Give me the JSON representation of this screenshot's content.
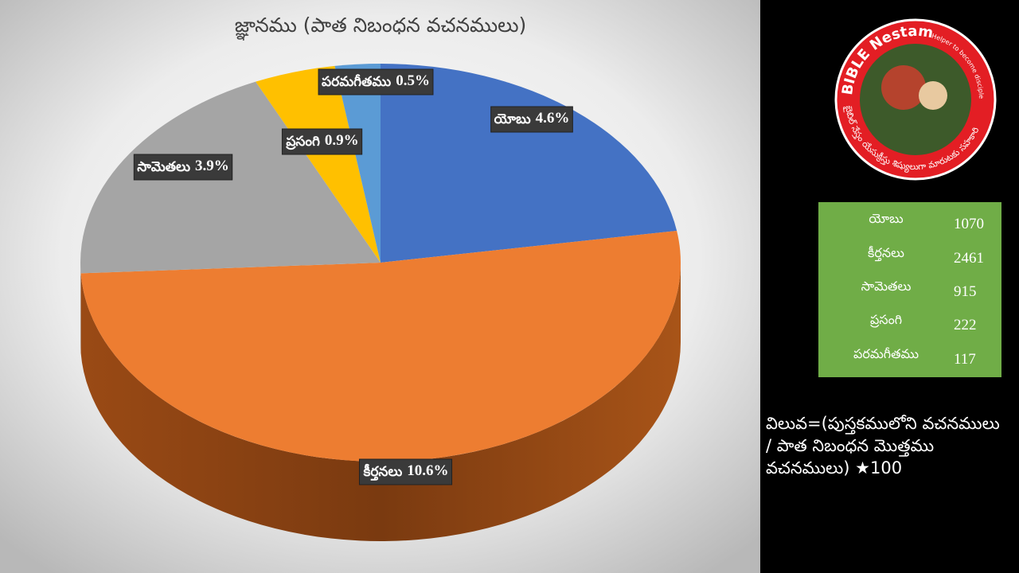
{
  "chart_data": {
    "type": "pie3d",
    "title": "జ్ఞానము (పాత నిబంధన వచనములు)",
    "categories": [
      "యోబు",
      "కీర్తనలు",
      "సామెతలు",
      "ప్రసంగి",
      "పరమగీతము"
    ],
    "values": [
      4.6,
      10.6,
      3.9,
      0.9,
      0.5
    ],
    "value_labels": [
      "4.6%",
      "10.6%",
      "3.9%",
      "0.9%",
      "0.5%"
    ],
    "colors": [
      "#4472c4",
      "#ed7d31",
      "#a5a5a5",
      "#ffc000",
      "#5b9bd5"
    ]
  },
  "table": {
    "rows": [
      [
        "యోబు",
        1070
      ],
      [
        "కీర్తనలు",
        2461
      ],
      [
        "సామెతలు",
        915
      ],
      [
        "ప్రసంగి",
        222
      ],
      [
        "పరమగీతము",
        117
      ]
    ]
  },
  "note": {
    "lines": [
      "విలువ=(పుస్తకములోని వచనములు",
      "/ పాత నిబంధన మొత్తము",
      "వచనములు) ★100"
    ]
  },
  "logo": {
    "name": "BIBLE Nestam",
    "tagline": "Helper to become disciple of JESUS CHRIST",
    "telugu": "బైబిల్ నేస్తం యేసుక్రీస్తు శిష్యులుగా మారుటకు సహకారి"
  }
}
